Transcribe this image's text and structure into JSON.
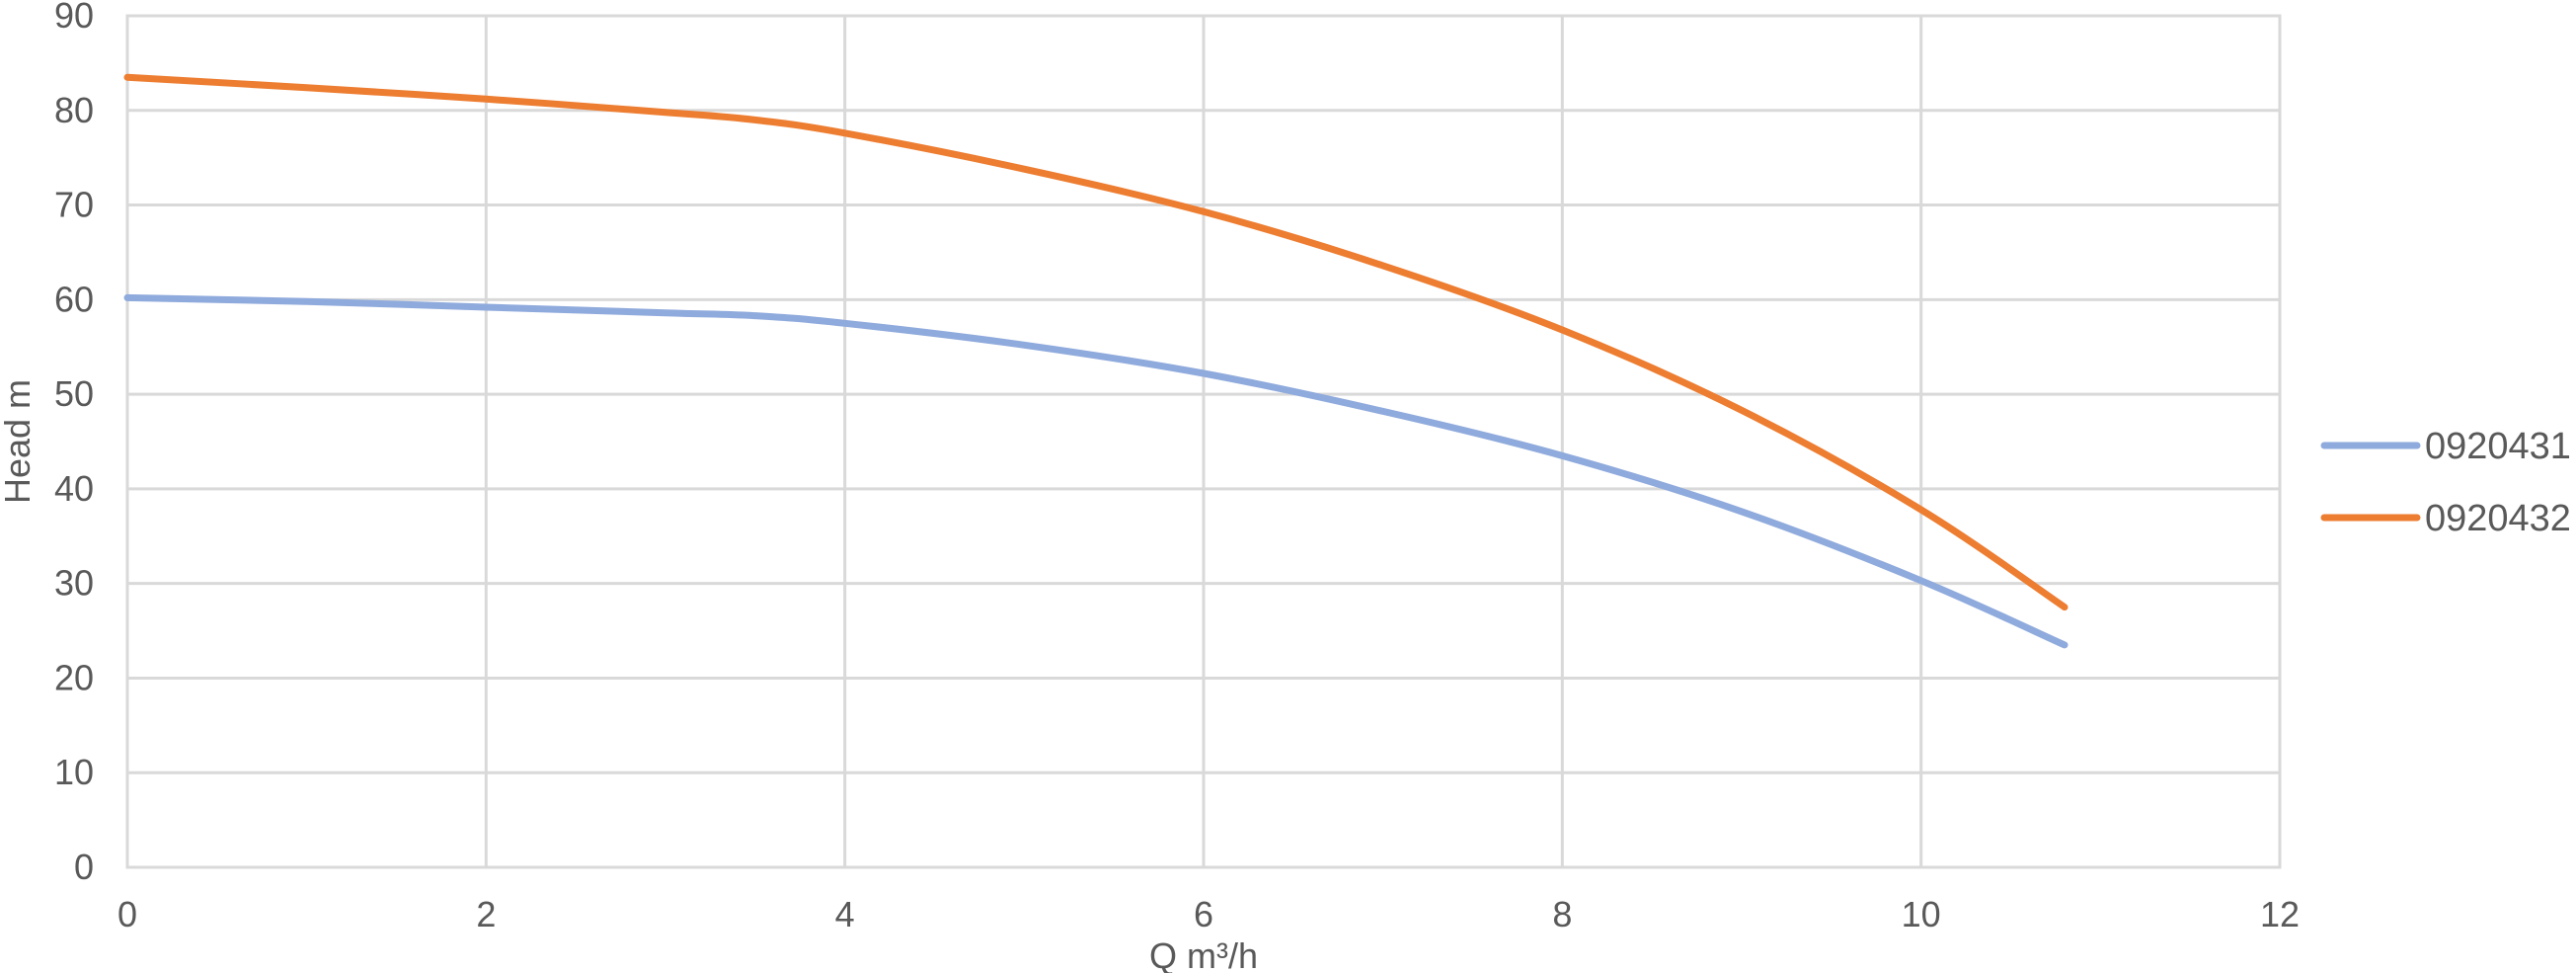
{
  "chart_data": {
    "type": "line",
    "title": "",
    "xlabel": "Q m³/h",
    "ylabel": "Head m",
    "xlim": [
      0,
      12
    ],
    "ylim": [
      0,
      90
    ],
    "xticks": [
      0,
      2,
      4,
      6,
      8,
      10,
      12
    ],
    "yticks": [
      0,
      10,
      20,
      30,
      40,
      50,
      60,
      70,
      80,
      90
    ],
    "grid": true,
    "legend_position": "right",
    "series": [
      {
        "name": "0920431",
        "color": "#8faadc",
        "x": [
          0,
          1,
          2,
          3,
          3.5,
          4,
          5,
          6,
          7,
          8,
          9,
          10,
          10.8
        ],
        "y": [
          60.2,
          59.8,
          59.2,
          58.6,
          58.3,
          57.5,
          55.2,
          52.2,
          48.2,
          43.5,
          37.6,
          30.3,
          23.5
        ]
      },
      {
        "name": "0920432",
        "color": "#ed7d31",
        "x": [
          0,
          1,
          2,
          3,
          3.5,
          4,
          5,
          6,
          7,
          8,
          9,
          10,
          10.8
        ],
        "y": [
          83.5,
          82.4,
          81.2,
          79.8,
          79.0,
          77.6,
          73.8,
          69.3,
          63.6,
          56.8,
          48.3,
          37.8,
          27.5
        ]
      }
    ]
  }
}
